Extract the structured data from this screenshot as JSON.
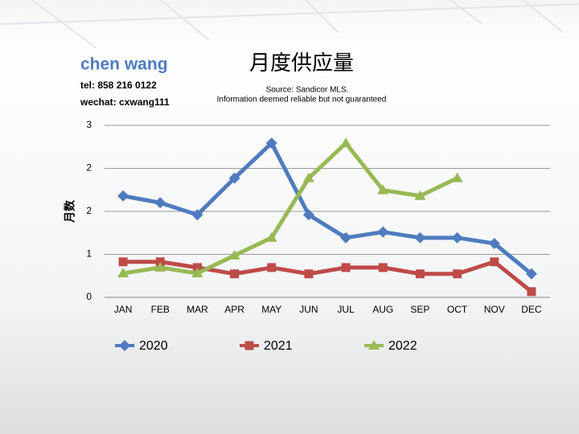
{
  "contact": {
    "name": "chen wang",
    "tel": "tel: 858 216 0122",
    "wechat": "wechat: cxwang111"
  },
  "chart_data": {
    "type": "line",
    "title": "月度供应量",
    "subtitle": [
      "Source: Sandicor MLS.",
      "Information deemed reliable but not guaranteed"
    ],
    "y_label": "月数",
    "categories": [
      "JAN",
      "FEB",
      "MAR",
      "APR",
      "MAY",
      "JUN",
      "JUL",
      "AUG",
      "SEP",
      "OCT",
      "NOV",
      "DEC"
    ],
    "series": [
      {
        "name": "2020",
        "color": "#4f7bbf",
        "marker": "diamond",
        "values": [
          1.77,
          1.65,
          1.44,
          2.08,
          2.69,
          1.44,
          1.04,
          1.14,
          1.04,
          1.04,
          0.94,
          0.41
        ]
      },
      {
        "name": "2021",
        "color": "#be4b48",
        "marker": "square",
        "values": [
          0.62,
          0.62,
          0.52,
          0.41,
          0.52,
          0.41,
          0.52,
          0.52,
          0.41,
          0.41,
          0.62,
          0.1
        ]
      },
      {
        "name": "2022",
        "color": "#98b954",
        "marker": "triangle",
        "values": [
          0.42,
          0.52,
          0.42,
          0.73,
          1.04,
          2.08,
          2.69,
          1.87,
          1.77,
          2.08,
          null,
          null
        ]
      }
    ],
    "ylim": [
      0,
      3
    ],
    "yticks": [
      0,
      {
        "value": 0.75,
        "label": "1"
      },
      {
        "value": 1.5,
        "label": "2"
      },
      {
        "value": 2.25,
        "label": "2"
      },
      3
    ],
    "grid": true,
    "legend": "bottom"
  }
}
